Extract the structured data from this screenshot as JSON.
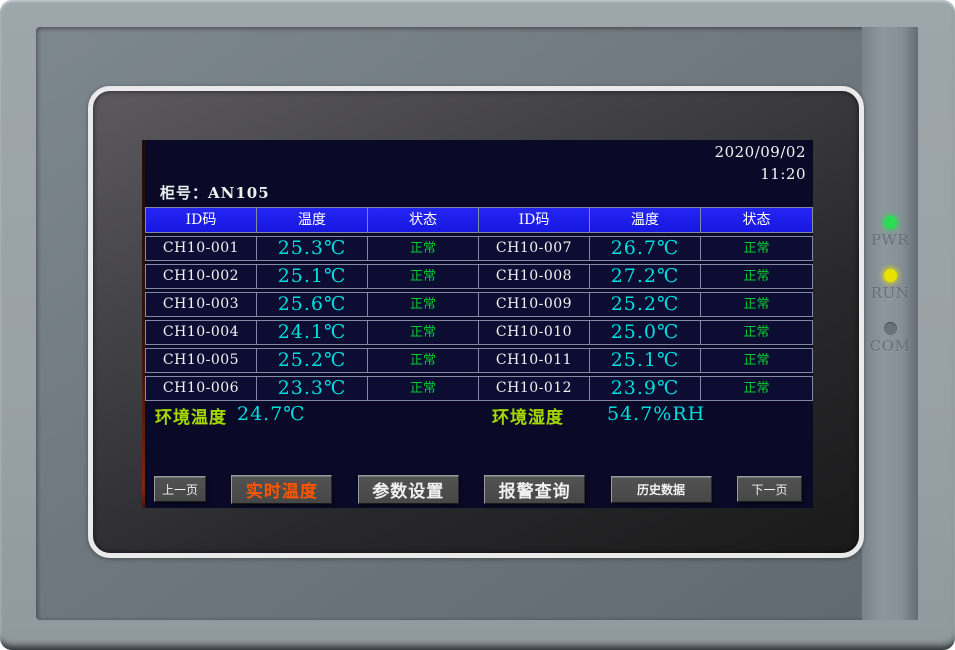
{
  "panel": {
    "date": "2020/09/02",
    "time": "11:20",
    "cabinet_label": "柜号：AN105"
  },
  "table": {
    "headers": [
      "ID码",
      "温度",
      "状态",
      "ID码",
      "温度",
      "状态"
    ],
    "rows": [
      [
        "CH10-001",
        "25.3℃",
        "正常",
        "CH10-007",
        "26.7℃",
        "正常"
      ],
      [
        "CH10-002",
        "25.1℃",
        "正常",
        "CH10-008",
        "27.2℃",
        "正常"
      ],
      [
        "CH10-003",
        "25.6℃",
        "正常",
        "CH10-009",
        "25.2℃",
        "正常"
      ],
      [
        "CH10-004",
        "24.1℃",
        "正常",
        "CH10-010",
        "25.0℃",
        "正常"
      ],
      [
        "CH10-005",
        "25.2℃",
        "正常",
        "CH10-011",
        "25.1℃",
        "正常"
      ],
      [
        "CH10-006",
        "23.3℃",
        "正常",
        "CH10-012",
        "23.9℃",
        "正常"
      ]
    ]
  },
  "ambient": {
    "temp_label": "环境温度",
    "temp_value": "24.7℃",
    "humidity_label": "环境湿度",
    "humidity_value": "54.7%RH"
  },
  "buttons": [
    {
      "label": "上一页",
      "active": false
    },
    {
      "label": "实时温度",
      "active": true
    },
    {
      "label": "参数设置",
      "active": false
    },
    {
      "label": "报警查询",
      "active": false
    },
    {
      "label": "历史数据",
      "active": false
    },
    {
      "label": "下一页",
      "active": false
    }
  ],
  "leds": [
    {
      "label": "PWR",
      "color": "#2ddc55",
      "state": "on"
    },
    {
      "label": "RUN",
      "color": "#e8e100",
      "state": "on"
    },
    {
      "label": "COM",
      "color": "#6a7478",
      "state": "off"
    }
  ],
  "colors": {
    "header_blue": "#1b1be8",
    "temp_cyan": "#00dede",
    "status_green": "#00cc33",
    "ambient_label_green": "#a4d800",
    "active_button_orange": "#ff5500",
    "screen_navy": "#0a0a28"
  }
}
